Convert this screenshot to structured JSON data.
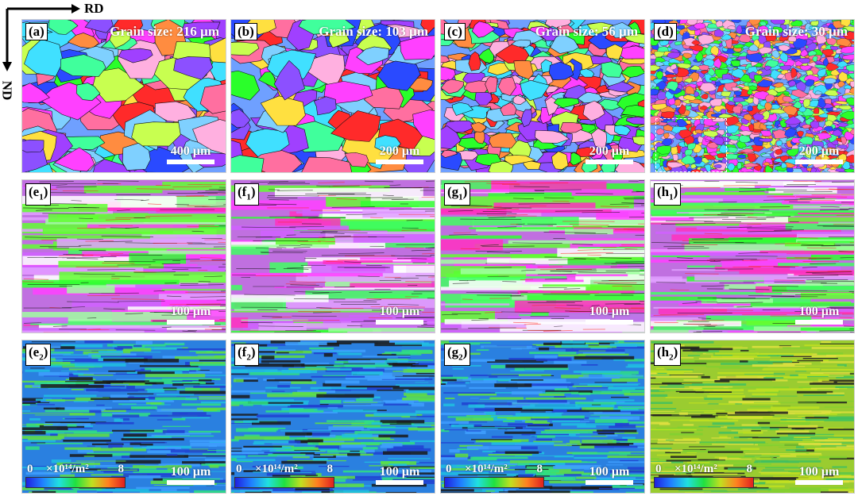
{
  "axes": {
    "horizontal": "RD",
    "vertical": "ND"
  },
  "colors": {
    "grain_boundary": "#111111",
    "tag_bg": "#ffffff"
  },
  "row1": [
    {
      "tag": "a",
      "grain_size": "Grain size: 216 µm",
      "scale": "400 µm"
    },
    {
      "tag": "b",
      "grain_size": "Grain size: 103 µm",
      "scale": "200 µm"
    },
    {
      "tag": "c",
      "grain_size": "Grain size: 56 µm",
      "scale": "200 µm"
    },
    {
      "tag": "d",
      "grain_size": "Grain size: 30 µm",
      "scale": "200 µm"
    }
  ],
  "row2": [
    {
      "tag": "e",
      "sub": "1",
      "scale": "100 µm"
    },
    {
      "tag": "f",
      "sub": "1",
      "scale": "100 µm"
    },
    {
      "tag": "g",
      "sub": "1",
      "scale": "100 µm"
    },
    {
      "tag": "h",
      "sub": "1",
      "scale": "100 µm"
    }
  ],
  "row3": [
    {
      "tag": "e",
      "sub": "2",
      "scale": "100 µm"
    },
    {
      "tag": "f",
      "sub": "2",
      "scale": "100 µm"
    },
    {
      "tag": "g",
      "sub": "2",
      "scale": "100 µm"
    },
    {
      "tag": "h",
      "sub": "2",
      "scale": "100 µm"
    }
  ],
  "colorbar": {
    "min": "0",
    "unit": "×10¹⁴/m²",
    "max": "8"
  }
}
